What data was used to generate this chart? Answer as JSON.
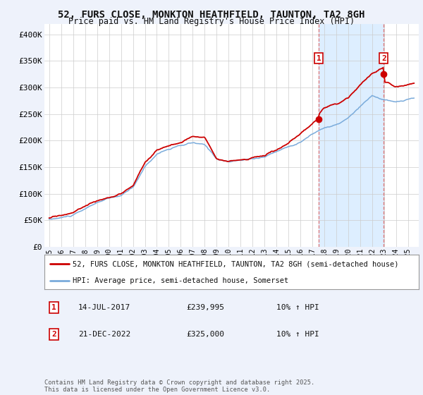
{
  "title_line1": "52, FURS CLOSE, MONKTON HEATHFIELD, TAUNTON, TA2 8GH",
  "title_line2": "Price paid vs. HM Land Registry's House Price Index (HPI)",
  "ylim": [
    0,
    420000
  ],
  "yticks": [
    0,
    50000,
    100000,
    150000,
    200000,
    250000,
    300000,
    350000,
    400000
  ],
  "ytick_labels": [
    "£0",
    "£50K",
    "£100K",
    "£150K",
    "£200K",
    "£250K",
    "£300K",
    "£350K",
    "£400K"
  ],
  "red_line_label": "52, FURS CLOSE, MONKTON HEATHFIELD, TAUNTON, TA2 8GH (semi-detached house)",
  "blue_line_label": "HPI: Average price, semi-detached house, Somerset",
  "red_color": "#cc0000",
  "blue_color": "#7aabdb",
  "shade_color": "#ddeeff",
  "marker1_year": 2017.54,
  "marker1_value": 239995,
  "marker2_year": 2022.97,
  "marker2_value": 325000,
  "vline_color": "#dd6666",
  "annotation1_date": "14-JUL-2017",
  "annotation1_price": "£239,995",
  "annotation1_hpi": "10% ↑ HPI",
  "annotation2_date": "21-DEC-2022",
  "annotation2_price": "£325,000",
  "annotation2_hpi": "10% ↑ HPI",
  "footer": "Contains HM Land Registry data © Crown copyright and database right 2025.\nThis data is licensed under the Open Government Licence v3.0.",
  "background_color": "#eef2fb",
  "plot_bg_color": "#ffffff",
  "grid_color": "#cccccc",
  "legend_border_color": "#999999"
}
